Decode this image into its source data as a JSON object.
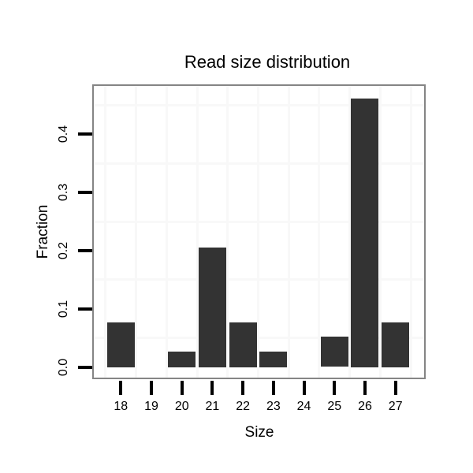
{
  "chart_data": {
    "type": "bar",
    "title": "Read size distribution",
    "xlabel": "Size",
    "ylabel": "Fraction",
    "categories": [
      "18",
      "19",
      "20",
      "21",
      "22",
      "23",
      "24",
      "25",
      "26",
      "27"
    ],
    "values": [
      0.077,
      0,
      0.026,
      0.205,
      0.077,
      0.026,
      0,
      0.052,
      0.462,
      0.077
    ],
    "y_ticks": [
      0.0,
      0.1,
      0.2,
      0.3,
      0.4
    ],
    "y_tick_labels": [
      "0.0",
      "0.1",
      "0.2",
      "0.3",
      "0.4"
    ],
    "ylim": [
      -0.021,
      0.486
    ],
    "grid": "minor-only",
    "grid_minor_y": [
      0.05,
      0.15,
      0.25,
      0.35,
      0.45
    ],
    "grid_minor_x_between_categories": true,
    "legend": "none",
    "colors": {
      "bar": "#333333",
      "panel_border": "#858585",
      "grid": "#f8f8f8",
      "tick": "#000000",
      "text": "#000000",
      "background": "#ffffff"
    }
  }
}
